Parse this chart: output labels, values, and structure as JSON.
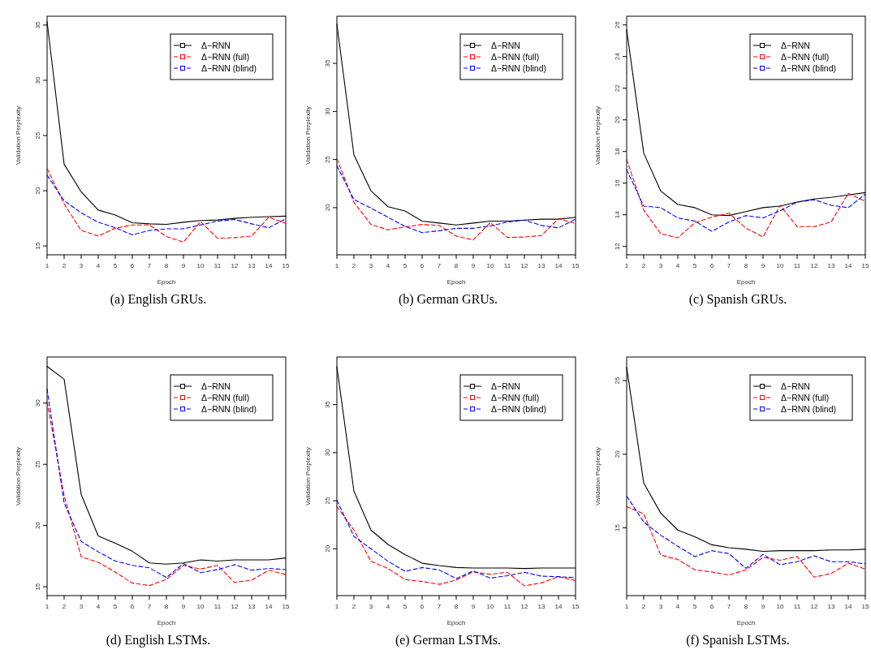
{
  "chart_data": [
    {
      "type": "line",
      "title": "(a)  English GRUs.",
      "xlabel": "Epoch",
      "ylabel": "Validation Perplexity",
      "x": [
        1,
        2,
        3,
        4,
        5,
        6,
        7,
        8,
        9,
        10,
        11,
        12,
        13,
        14,
        15
      ],
      "xlim": [
        1,
        15
      ],
      "xticks": [
        1,
        2,
        3,
        4,
        5,
        6,
        7,
        8,
        9,
        10,
        11,
        12,
        13,
        14,
        15
      ],
      "ylim": [
        14.2,
        35.8
      ],
      "yticks": [
        15,
        20,
        25,
        30,
        35
      ],
      "grid": false,
      "legend": "top right",
      "marker": "none",
      "series": [
        {
          "name": "Δ−RNN",
          "color": "#000000",
          "line_style": "solid",
          "values": [
            35.3,
            22.4,
            19.9,
            18.25,
            17.8,
            17.1,
            17.0,
            16.95,
            17.15,
            17.3,
            17.35,
            17.5,
            17.6,
            17.65,
            17.7
          ]
        },
        {
          "name": "Δ−RNN (full)",
          "color": "#ff0000",
          "line_style": "dashed",
          "values": [
            22.0,
            18.8,
            16.4,
            15.9,
            16.6,
            16.9,
            16.9,
            15.85,
            15.35,
            17.2,
            15.7,
            15.75,
            15.9,
            17.6,
            17.05
          ]
        },
        {
          "name": "Δ−RNN (blind)",
          "color": "#0000ff",
          "line_style": "dashed",
          "values": [
            21.4,
            19.1,
            18.0,
            17.15,
            16.65,
            16.0,
            16.4,
            16.55,
            16.55,
            16.9,
            17.25,
            17.4,
            17.0,
            16.65,
            17.45
          ]
        }
      ]
    },
    {
      "type": "line",
      "title": "(b)  German GRUs.",
      "xlabel": "Epoch",
      "ylabel": "Validation Perplexity",
      "x": [
        1,
        2,
        3,
        4,
        5,
        6,
        7,
        8,
        9,
        10,
        11,
        12,
        13,
        14,
        15
      ],
      "xlim": [
        1,
        15
      ],
      "xticks": [
        1,
        2,
        3,
        4,
        5,
        6,
        7,
        8,
        9,
        10,
        11,
        12,
        13,
        14,
        15
      ],
      "ylim": [
        15.1,
        39.9
      ],
      "yticks": [
        20,
        25,
        30,
        35
      ],
      "grid": false,
      "legend": "top right",
      "marker": "none",
      "series": [
        {
          "name": "Δ−RNN",
          "color": "#000000",
          "line_style": "solid",
          "values": [
            39.1,
            25.5,
            21.75,
            20.1,
            19.65,
            18.6,
            18.4,
            18.2,
            18.4,
            18.6,
            18.6,
            18.7,
            18.8,
            18.8,
            19.0
          ]
        },
        {
          "name": "Δ−RNN (full)",
          "color": "#ff0000",
          "line_style": "dashed",
          "values": [
            25.1,
            20.55,
            18.25,
            17.7,
            18.0,
            18.25,
            18.15,
            17.05,
            16.65,
            18.45,
            16.9,
            16.95,
            17.1,
            18.85,
            18.35
          ]
        },
        {
          "name": "Δ−RNN (blind)",
          "color": "#0000ff",
          "line_style": "dashed",
          "values": [
            24.35,
            20.85,
            19.95,
            19.0,
            18.05,
            17.4,
            17.6,
            17.85,
            17.85,
            18.1,
            18.5,
            18.7,
            18.15,
            17.9,
            18.8
          ]
        }
      ]
    },
    {
      "type": "line",
      "title": "(c)  Spanish GRUs.",
      "xlabel": "Epoch",
      "ylabel": "Validation Perplexity",
      "x": [
        1,
        2,
        3,
        4,
        5,
        6,
        7,
        8,
        9,
        10,
        11,
        12,
        13,
        14,
        15
      ],
      "xlim": [
        1,
        15
      ],
      "xticks": [
        1,
        2,
        3,
        4,
        5,
        6,
        7,
        8,
        9,
        10,
        11,
        12,
        13,
        14,
        15
      ],
      "ylim": [
        11.47,
        26.55
      ],
      "yticks": [
        12,
        14,
        16,
        18,
        20,
        22,
        24,
        26
      ],
      "grid": false,
      "legend": "top right",
      "marker": "none",
      "series": [
        {
          "name": "Δ−RNN",
          "color": "#000000",
          "line_style": "solid",
          "values": [
            25.7,
            17.9,
            15.5,
            14.65,
            14.45,
            14.0,
            13.95,
            14.2,
            14.45,
            14.55,
            14.8,
            15.0,
            15.1,
            15.25,
            15.4
          ]
        },
        {
          "name": "Δ−RNN (full)",
          "color": "#ff0000",
          "line_style": "dashed",
          "values": [
            17.5,
            14.3,
            12.8,
            12.55,
            13.5,
            13.85,
            14.1,
            13.15,
            12.6,
            14.6,
            13.25,
            13.25,
            13.55,
            15.35,
            14.85
          ]
        },
        {
          "name": "Δ−RNN (blind)",
          "color": "#0000ff",
          "line_style": "dashed",
          "values": [
            16.85,
            14.55,
            14.45,
            13.8,
            13.6,
            12.95,
            13.55,
            13.95,
            13.8,
            14.25,
            14.8,
            14.95,
            14.6,
            14.45,
            15.3
          ]
        }
      ]
    },
    {
      "type": "line",
      "title": "(d)  English LSTMs.",
      "xlabel": "Epoch",
      "ylabel": "Validation Perplexity",
      "x": [
        1,
        2,
        3,
        4,
        5,
        6,
        7,
        8,
        9,
        10,
        11,
        12,
        13,
        14,
        15
      ],
      "xlim": [
        1,
        15
      ],
      "xticks": [
        1,
        2,
        3,
        4,
        5,
        6,
        7,
        8,
        9,
        10,
        11,
        12,
        13,
        14,
        15
      ],
      "ylim": [
        14.28,
        33.76
      ],
      "yticks": [
        15,
        20,
        25,
        30
      ],
      "grid": false,
      "legend": "top right",
      "marker": "none",
      "series": [
        {
          "name": "Δ−RNN",
          "color": "#000000",
          "line_style": "solid",
          "values": [
            33.0,
            31.95,
            22.55,
            19.15,
            18.55,
            17.9,
            16.95,
            16.85,
            16.95,
            17.2,
            17.1,
            17.2,
            17.2,
            17.2,
            17.35
          ]
        },
        {
          "name": "Δ−RNN (full)",
          "color": "#ff0000",
          "line_style": "dashed",
          "values": [
            30.1,
            22.45,
            17.45,
            17.0,
            16.2,
            15.3,
            15.1,
            15.6,
            16.75,
            16.45,
            16.75,
            15.35,
            15.55,
            16.35,
            16.0
          ]
        },
        {
          "name": "Δ−RNN (blind)",
          "color": "#0000ff",
          "line_style": "dashed",
          "values": [
            31.15,
            21.85,
            18.7,
            17.85,
            17.1,
            16.75,
            16.55,
            15.75,
            16.9,
            16.15,
            16.4,
            16.8,
            16.35,
            16.5,
            16.4
          ]
        }
      ]
    },
    {
      "type": "line",
      "title": "(e)  German LSTMs.",
      "xlabel": "Epoch",
      "ylabel": "Validation Perplexity",
      "x": [
        1,
        2,
        3,
        4,
        5,
        6,
        7,
        8,
        9,
        10,
        11,
        12,
        13,
        14,
        15
      ],
      "xlim": [
        1,
        15
      ],
      "xticks": [
        1,
        2,
        3,
        4,
        5,
        6,
        7,
        8,
        9,
        10,
        11,
        12,
        13,
        14,
        15
      ],
      "ylim": [
        15.13,
        39.95
      ],
      "yticks": [
        20,
        25,
        30,
        35
      ],
      "grid": false,
      "legend": "top right",
      "marker": "none",
      "series": [
        {
          "name": "Δ−RNN",
          "color": "#000000",
          "line_style": "solid",
          "values": [
            38.95,
            26.0,
            21.95,
            20.45,
            19.4,
            18.5,
            18.25,
            18.05,
            18.0,
            18.0,
            18.0,
            17.95,
            18.0,
            18.0,
            18.0
          ]
        },
        {
          "name": "Δ−RNN (full)",
          "color": "#ff0000",
          "line_style": "dashed",
          "values": [
            24.4,
            21.95,
            18.7,
            17.95,
            16.8,
            16.6,
            16.3,
            16.75,
            17.6,
            17.35,
            17.55,
            16.15,
            16.45,
            17.1,
            16.7
          ]
        },
        {
          "name": "Δ−RNN (blind)",
          "color": "#0000ff",
          "line_style": "dashed",
          "values": [
            25.05,
            21.3,
            20.0,
            18.7,
            17.65,
            18.05,
            17.8,
            16.9,
            17.7,
            16.95,
            17.2,
            17.55,
            17.15,
            17.1,
            17.0
          ]
        }
      ]
    },
    {
      "type": "line",
      "title": "(f)  Spanish LSTMs.",
      "xlabel": "Epoch",
      "ylabel": "Validation Perplexity",
      "x": [
        1,
        2,
        3,
        4,
        5,
        6,
        7,
        8,
        9,
        10,
        11,
        12,
        13,
        14,
        15
      ],
      "xlim": [
        1,
        15
      ],
      "xticks": [
        1,
        2,
        3,
        4,
        5,
        6,
        7,
        8,
        9,
        10,
        11,
        12,
        13,
        14,
        15
      ],
      "ylim": [
        10.4,
        26.6
      ],
      "yticks": [
        15,
        20,
        25
      ],
      "grid": false,
      "legend": "top right",
      "marker": "none",
      "series": [
        {
          "name": "Δ−RNN",
          "color": "#000000",
          "line_style": "solid",
          "values": [
            25.9,
            18.05,
            16.0,
            14.85,
            14.4,
            13.85,
            13.65,
            13.55,
            13.4,
            13.45,
            13.45,
            13.45,
            13.5,
            13.5,
            13.55
          ]
        },
        {
          "name": "Δ−RNN (full)",
          "color": "#ff0000",
          "line_style": "dashed",
          "values": [
            16.45,
            15.95,
            13.15,
            12.85,
            12.15,
            12.0,
            11.8,
            12.15,
            13.0,
            12.8,
            13.05,
            11.65,
            11.9,
            12.6,
            12.2
          ]
        },
        {
          "name": "Δ−RNN (blind)",
          "color": "#0000ff",
          "line_style": "dashed",
          "values": [
            17.15,
            15.4,
            14.5,
            13.75,
            13.05,
            13.45,
            13.25,
            12.25,
            13.2,
            12.5,
            12.7,
            13.1,
            12.7,
            12.7,
            12.55
          ]
        }
      ]
    }
  ]
}
